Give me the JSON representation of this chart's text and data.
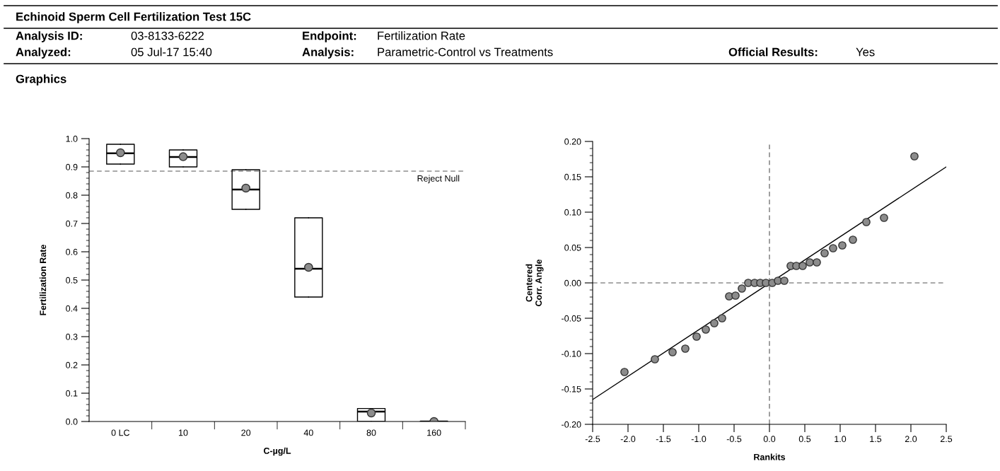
{
  "chart_data": [
    {
      "type": "box",
      "title": "Echinoid Sperm Cell Fertilization Test 15C",
      "subtitle": "Graphics",
      "annotations": [
        "Analysis ID:",
        "03-8133-6222",
        "Analyzed:",
        "05 Jul-17 15:40",
        "Endpoint:",
        "Fertilization Rate",
        "Analysis:",
        "Parametric-Control vs Treatments",
        "Official Results:",
        "Yes"
      ],
      "xlabel": "C-µg/L",
      "ylabel": "Fertilization Rate",
      "categories": [
        "0 LC",
        "10",
        "20",
        "40",
        "80",
        "160"
      ],
      "boxes": [
        {
          "low": 0.91,
          "q1": 0.91,
          "median": 0.948,
          "q3": 0.98,
          "high": 0.98,
          "mean": 0.95
        },
        {
          "low": 0.9,
          "q1": 0.9,
          "median": 0.935,
          "q3": 0.96,
          "high": 0.96,
          "mean": 0.936
        },
        {
          "low": 0.75,
          "q1": 0.75,
          "median": 0.82,
          "q3": 0.89,
          "high": 0.89,
          "mean": 0.825
        },
        {
          "low": 0.44,
          "q1": 0.44,
          "median": 0.54,
          "q3": 0.72,
          "high": 0.72,
          "mean": 0.545
        },
        {
          "low": 0.0,
          "q1": 0.0,
          "median": 0.035,
          "q3": 0.046,
          "high": 0.046,
          "mean": 0.03
        },
        {
          "low": 0.0,
          "q1": 0.0,
          "median": 0.0,
          "q3": 0.0,
          "high": 0.0,
          "mean": 0.0
        }
      ],
      "ylim": [
        0.0,
        1.0
      ],
      "yticks": [
        {
          "value": 0.0,
          "label": "0.0"
        },
        0.1,
        0.2,
        0.3,
        0.4,
        0.5,
        0.6,
        0.7,
        0.8,
        0.9,
        {
          "value": 1.0,
          "label": "1.0"
        }
      ],
      "ref_lines": [
        {
          "axis": "y",
          "value": 0.885,
          "label": "Reject Null",
          "line_style": "dashed",
          "color": "#555555"
        }
      ],
      "grid": false,
      "legend": false
    },
    {
      "type": "scatter",
      "xlabel": "Rankits",
      "ylabel": "Centered\nCorr. Angle",
      "series": [
        {
          "type": "scatter",
          "color": "#8c8c8c",
          "marker": "circle",
          "x": [
            -2.05,
            -1.62,
            -1.37,
            -1.19,
            -1.03,
            -0.9,
            -0.78,
            -0.67,
            -0.57,
            -0.48,
            -0.39,
            -0.3,
            -0.21,
            -0.13,
            -0.05,
            0.04,
            0.12,
            0.21,
            0.3,
            0.38,
            0.47,
            0.57,
            0.67,
            0.78,
            0.9,
            1.03,
            1.18,
            1.37,
            1.62,
            2.05
          ],
          "values": [
            -0.126,
            -0.108,
            -0.098,
            -0.093,
            -0.076,
            -0.066,
            -0.057,
            -0.05,
            -0.019,
            -0.018,
            -0.008,
            0.0,
            0.0,
            0.0,
            0.0,
            0.0,
            0.003,
            0.003,
            0.024,
            0.024,
            0.024,
            0.029,
            0.029,
            0.042,
            0.049,
            0.053,
            0.061,
            0.086,
            0.092,
            0.179
          ]
        },
        {
          "type": "line",
          "color": "#000000",
          "marker": "none",
          "x": [
            -2.5,
            2.5
          ],
          "values": [
            -0.165,
            0.164
          ]
        }
      ],
      "xlim": [
        -2.5,
        2.5
      ],
      "xticks": [
        -2.5,
        {
          "value": -2.0,
          "label": "-2.0"
        },
        -1.5,
        {
          "value": -1.0,
          "label": "-1.0"
        },
        -0.5,
        {
          "value": 0.0,
          "label": "0.0"
        },
        0.5,
        {
          "value": 1.0,
          "label": "1.0"
        },
        1.5,
        {
          "value": 2.0,
          "label": "2.0"
        },
        2.5
      ],
      "ylim": [
        -0.2,
        0.2
      ],
      "yticks": [
        {
          "value": -0.2,
          "label": "-0.20"
        },
        {
          "value": -0.15,
          "label": "-0.15"
        },
        {
          "value": -0.1,
          "label": "-0.10"
        },
        {
          "value": -0.05,
          "label": "-0.05"
        },
        {
          "value": 0.0,
          "label": "0.00"
        },
        {
          "value": 0.05,
          "label": "0.05"
        },
        {
          "value": 0.1,
          "label": "0.10"
        },
        {
          "value": 0.15,
          "label": "0.15"
        },
        {
          "value": 0.2,
          "label": "0.20"
        }
      ],
      "ref_lines": [
        {
          "axis": "x",
          "value": 0.0,
          "line_style": "dashed",
          "color": "#555555"
        },
        {
          "axis": "y",
          "value": 0.0,
          "line_style": "dashed",
          "color": "#555555"
        }
      ],
      "grid": false,
      "legend": false
    }
  ]
}
